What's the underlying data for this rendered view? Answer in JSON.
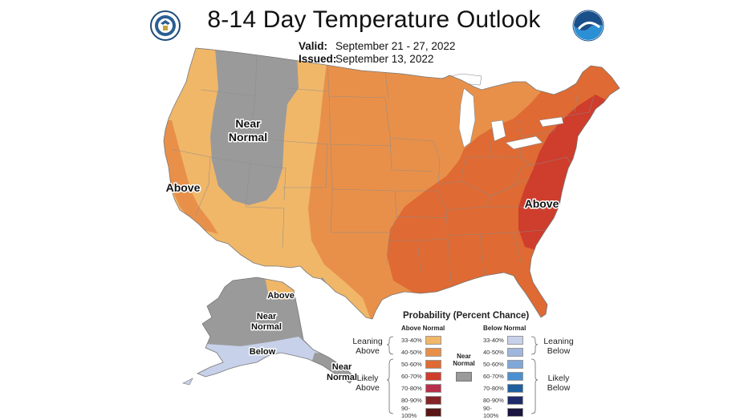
{
  "title": "8-14 Day Temperature Outlook",
  "valid_label": "Valid:",
  "valid_value": "September 21 - 27, 2022",
  "issued_label": "Issued:",
  "issued_value": "September 13, 2022",
  "left_logo": "department-of-commerce-seal",
  "right_logo": "noaa-logo",
  "map_labels": {
    "near_normal_west": [
      "Near",
      "Normal"
    ],
    "above_west": "Above",
    "above_east": "Above",
    "alaska_above": "Above",
    "alaska_near_normal": [
      "Near",
      "Normal"
    ],
    "alaska_below": "Below",
    "alaska_near_normal_southeast": [
      "Near",
      "Normal"
    ]
  },
  "legend": {
    "title": "Probability (Percent Chance)",
    "above_header": "Above Normal",
    "below_header": "Below Normal",
    "near_normal_label": [
      "Near",
      "Normal"
    ],
    "leaning_above": [
      "Leaning",
      "Above"
    ],
    "likely_above": [
      "Likely",
      "Above"
    ],
    "leaning_below": [
      "Leaning",
      "Below"
    ],
    "likely_below": [
      "Likely",
      "Below"
    ],
    "above_bins": [
      {
        "range": "33-40%",
        "color": "#f0b769"
      },
      {
        "range": "40-50%",
        "color": "#e8904a"
      },
      {
        "range": "50-60%",
        "color": "#df6a33"
      },
      {
        "range": "60-70%",
        "color": "#cf3d2c"
      },
      {
        "range": "70-80%",
        "color": "#b72f4a"
      },
      {
        "range": "80-90%",
        "color": "#842428"
      },
      {
        "range": "90-100%",
        "color": "#5a1616"
      }
    ],
    "below_bins": [
      {
        "range": "33-40%",
        "color": "#c7d1ea"
      },
      {
        "range": "40-50%",
        "color": "#9fb7dc"
      },
      {
        "range": "50-60%",
        "color": "#7fa8d8"
      },
      {
        "range": "60-70%",
        "color": "#4a8fd0"
      },
      {
        "range": "70-80%",
        "color": "#1f5f9e"
      },
      {
        "range": "80-90%",
        "color": "#1f2a6b"
      },
      {
        "range": "90-100%",
        "color": "#1a1440"
      }
    ],
    "near_normal_color": "#9a9a9a"
  }
}
